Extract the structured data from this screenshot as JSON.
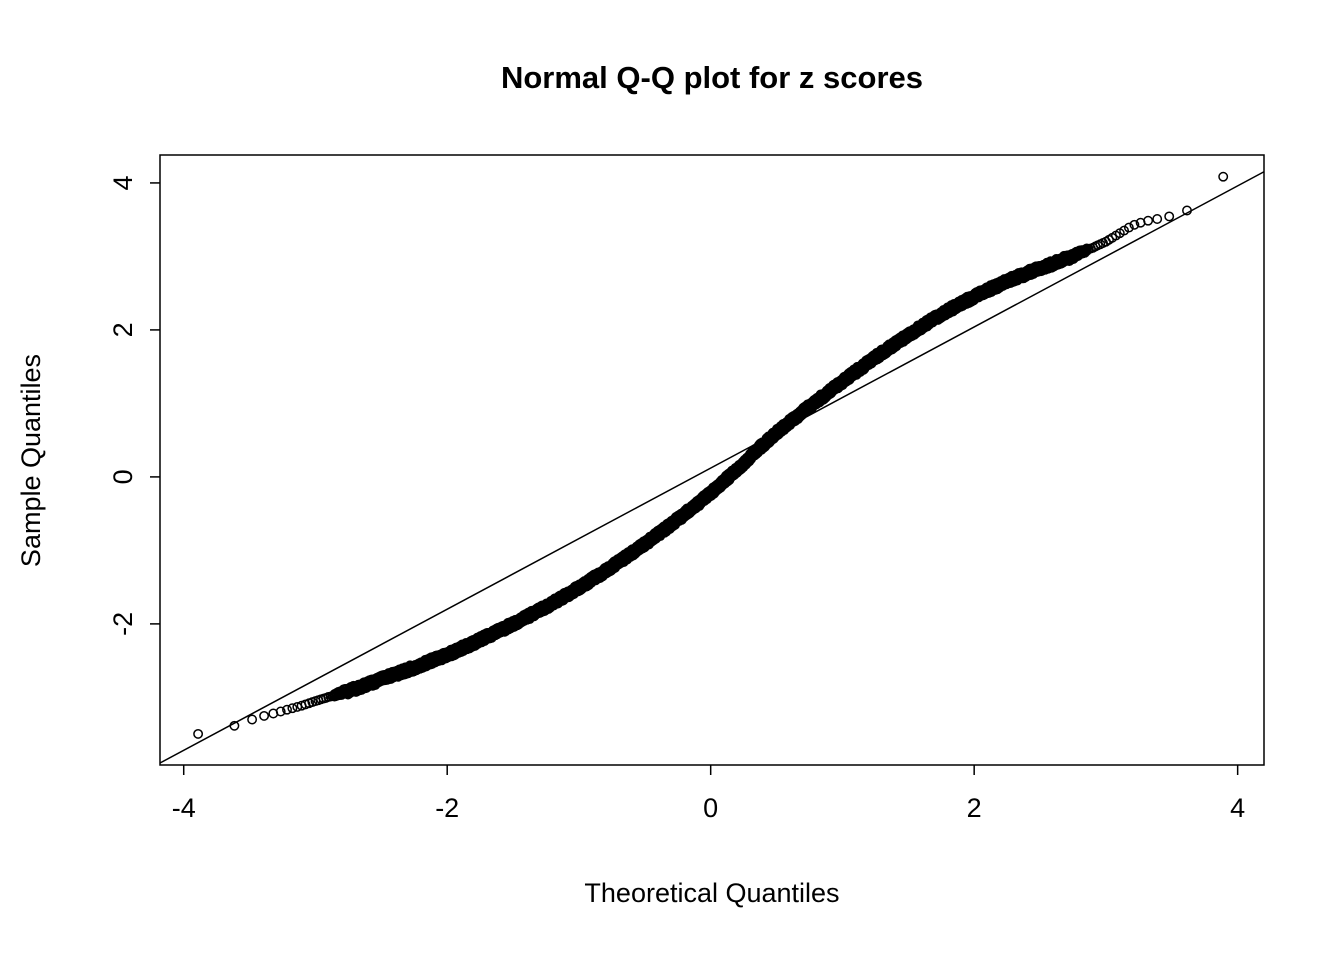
{
  "chart_data": {
    "type": "scatter",
    "title": "Normal Q-Q plot for z scores",
    "xlabel": "Theoretical Quantiles",
    "ylabel": "Sample Quantiles",
    "xlim": [
      -4.18,
      4.2
    ],
    "ylim": [
      -3.92,
      4.38
    ],
    "x_ticks": [
      -4,
      -2,
      0,
      2,
      4
    ],
    "y_ticks": [
      -2,
      0,
      2,
      4
    ],
    "grid": false,
    "marker": "open-circle",
    "colors": {
      "points": "#000000",
      "reference_line": "#000000",
      "background": "#ffffff"
    },
    "point_style": {
      "radius_px": 4.2,
      "stroke_px": 1.5
    },
    "n_points_estimate": 10000,
    "reference_line": {
      "slope": 0.96,
      "intercept": 0.12
    },
    "qq_curve": {
      "x": [
        -3.9,
        -3.6,
        -3.45,
        -3.3,
        -3.2,
        -3.1,
        -3.0,
        -2.8,
        -2.6,
        -2.4,
        -2.2,
        -2.0,
        -1.8,
        -1.6,
        -1.4,
        -1.2,
        -1.0,
        -0.8,
        -0.6,
        -0.4,
        -0.2,
        0.0,
        0.2,
        0.35,
        0.5,
        0.7,
        0.9,
        1.1,
        1.3,
        1.5,
        1.7,
        1.9,
        2.1,
        2.3,
        2.5,
        2.7,
        2.9,
        3.0,
        3.1,
        3.2,
        3.3,
        3.45,
        3.6,
        3.9
      ],
      "y": [
        -3.5,
        -3.38,
        -3.28,
        -3.21,
        -3.16,
        -3.11,
        -3.05,
        -2.94,
        -2.82,
        -2.69,
        -2.56,
        -2.42,
        -2.26,
        -2.09,
        -1.91,
        -1.72,
        -1.51,
        -1.28,
        -1.04,
        -0.78,
        -0.51,
        -0.22,
        0.1,
        0.36,
        0.6,
        0.89,
        1.16,
        1.43,
        1.69,
        1.93,
        2.16,
        2.36,
        2.54,
        2.7,
        2.84,
        2.97,
        3.12,
        3.2,
        3.31,
        3.42,
        3.48,
        3.53,
        3.6,
        4.1
      ]
    }
  }
}
